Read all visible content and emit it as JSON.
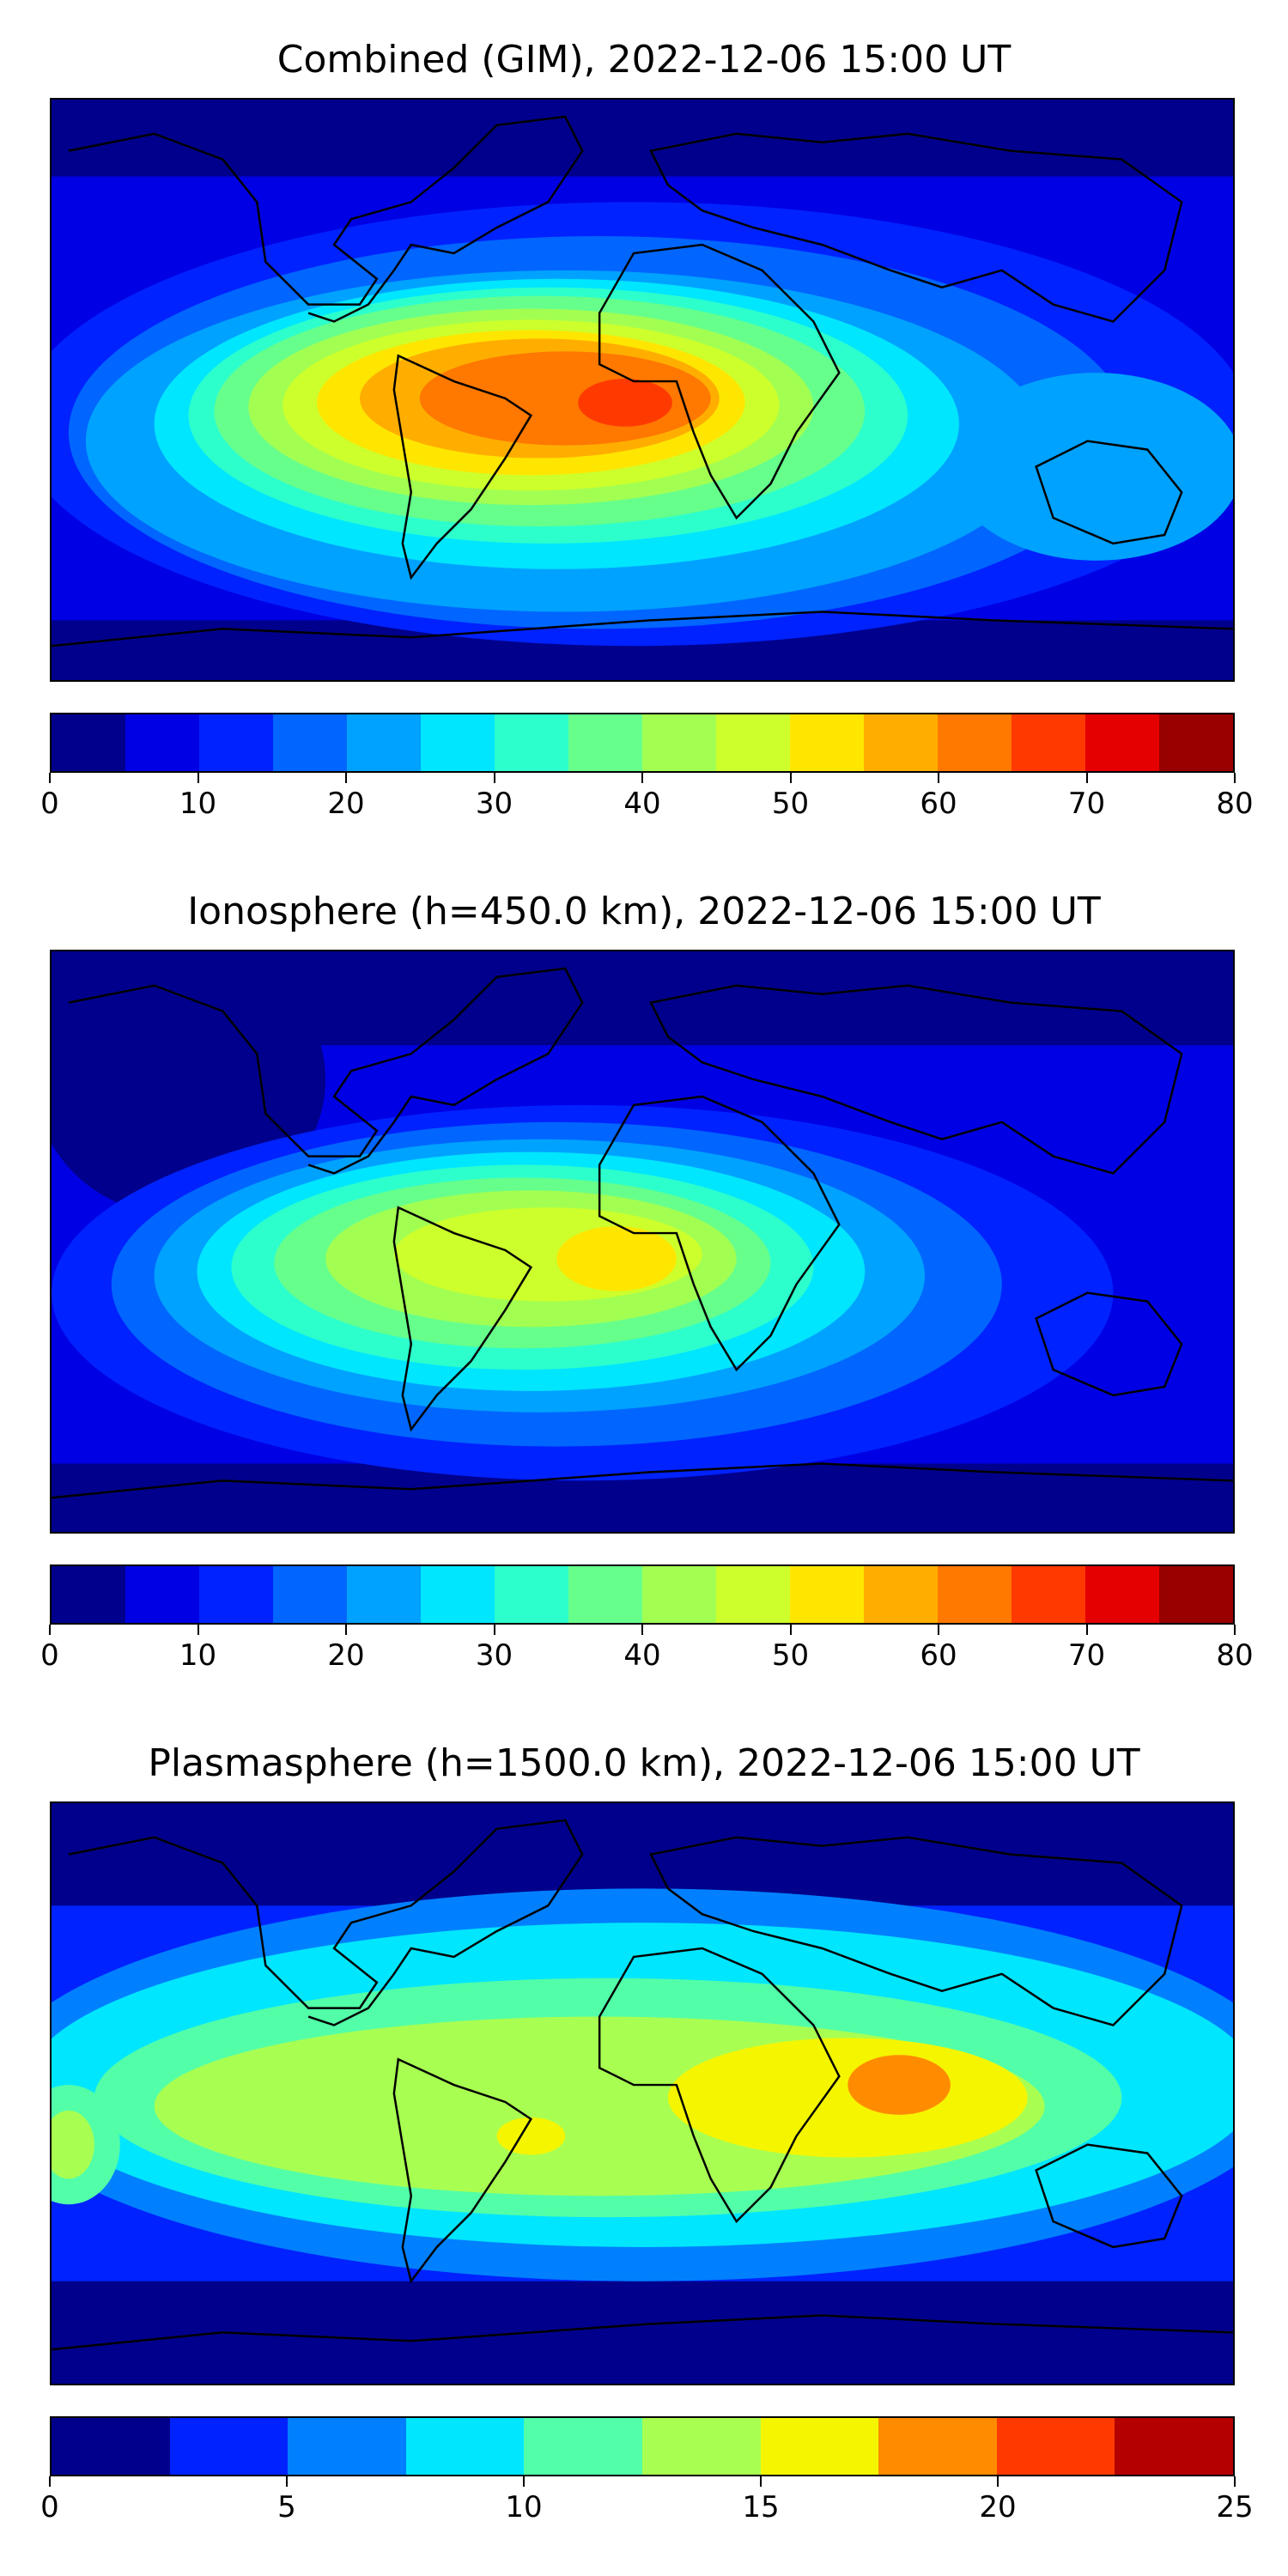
{
  "panels": [
    {
      "title": "Combined (GIM), 2022-12-06 15:00 UT",
      "colorbar": {
        "min": 0,
        "max": 80,
        "tick_labels": [
          "0",
          "10",
          "20",
          "30",
          "40",
          "50",
          "60",
          "70",
          "80"
        ],
        "colors": [
          "#00008c",
          "#0000e4",
          "#0022ff",
          "#0066ff",
          "#00a2ff",
          "#00e6ff",
          "#2cffcc",
          "#66ff8c",
          "#a2ff52",
          "#ccff2c",
          "#ffe600",
          "#ffae00",
          "#ff7800",
          "#ff3a00",
          "#e40000",
          "#990000"
        ]
      },
      "field_peak_label": "max over South Atlantic / Africa, approx. 65-70"
    },
    {
      "title": "Ionosphere  (h=450.0 km), 2022-12-06 15:00 UT",
      "colorbar": {
        "min": 0,
        "max": 80,
        "tick_labels": [
          "0",
          "10",
          "20",
          "30",
          "40",
          "50",
          "60",
          "70",
          "80"
        ],
        "colors": [
          "#00008c",
          "#0000e4",
          "#0022ff",
          "#0066ff",
          "#00a2ff",
          "#00e6ff",
          "#2cffcc",
          "#66ff8c",
          "#a2ff52",
          "#ccff2c",
          "#ffe600",
          "#ffae00",
          "#ff7800",
          "#ff3a00",
          "#e40000",
          "#990000"
        ]
      },
      "field_peak_label": "max over South Atlantic / Africa, approx. 50-55"
    },
    {
      "title": "Plasmasphere (h=1500.0 km), 2022-12-06 15:00 UT",
      "colorbar": {
        "min": 0,
        "max": 25,
        "tick_labels": [
          "0",
          "5",
          "10",
          "15",
          "20",
          "25"
        ],
        "colors": [
          "#00008c",
          "#0022ff",
          "#0080ff",
          "#00e6ff",
          "#52ffa8",
          "#a8ff52",
          "#f5f500",
          "#ff8c00",
          "#ff3a00",
          "#b40000"
        ]
      },
      "field_peak_label": "max over Indian Ocean, approx. 17.5-20"
    }
  ]
}
